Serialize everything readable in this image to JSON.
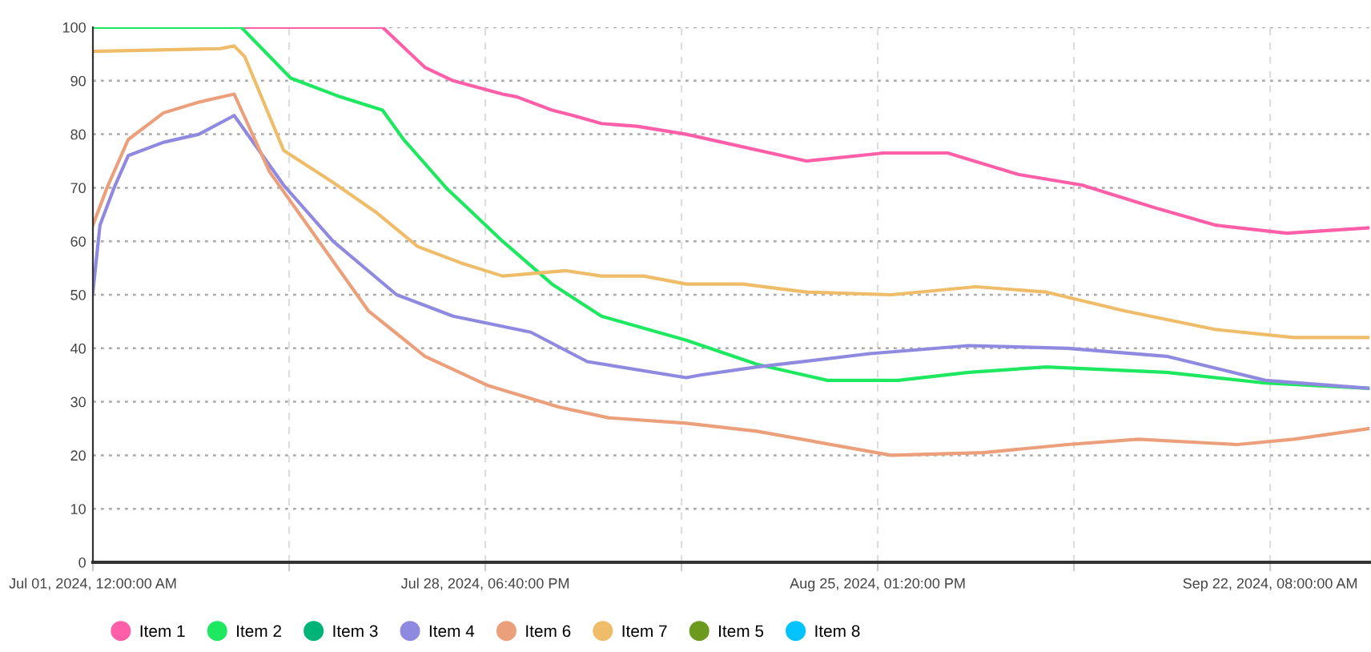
{
  "chart_data": {
    "type": "line",
    "xlim": [
      "2024-07-01T00:00",
      "2024-09-29T09:00"
    ],
    "xticks": [
      {
        "value": "2024-07-01T00:00",
        "label": "Jul 01, 2024, 12:00:00 AM"
      },
      {
        "value": "2024-07-14T21:20",
        "label": null
      },
      {
        "value": "2024-07-28T18:40",
        "label": "Jul 28, 2024, 06:40:00 PM"
      },
      {
        "value": "2024-08-11T16:00",
        "label": null
      },
      {
        "value": "2024-08-25T13:20",
        "label": "Aug 25, 2024, 01:20:00 PM"
      },
      {
        "value": "2024-09-08T10:40",
        "label": null
      },
      {
        "value": "2024-09-22T08:00",
        "label": "Sep 22, 2024, 08:00:00 AM"
      }
    ],
    "ylim": [
      0,
      100
    ],
    "yticks": [
      0,
      10,
      20,
      30,
      40,
      50,
      60,
      70,
      80,
      90,
      100
    ],
    "grid": true,
    "legend": "bottom",
    "marker": "none",
    "line_style": "solid",
    "series": [
      {
        "name": "Item 1",
        "color": "#ff5fa8",
        "x": [
          "2024-07-01",
          "2024-07-21T12:00",
          "2024-07-24T12:00",
          "2024-07-26T12:00",
          "2024-07-30",
          "2024-07-31",
          "2024-08-02T12:00",
          "2024-08-04",
          "2024-08-06",
          "2024-08-08T12:00",
          "2024-08-12",
          "2024-08-20T12:00",
          "2024-08-26",
          "2024-08-30T12:00",
          "2024-09-04T12:00",
          "2024-09-09",
          "2024-09-14T12:00",
          "2024-09-18T12:00",
          "2024-09-23T12:00",
          "2024-09-29T09:00"
        ],
        "values": [
          100,
          100,
          92.5,
          90,
          87.5,
          87,
          84.5,
          83.5,
          82,
          81.5,
          80,
          75,
          76.5,
          76.5,
          72.5,
          70.5,
          66,
          63,
          61.5,
          62.5
        ]
      },
      {
        "name": "Item 2",
        "color": "#1ee860",
        "x": [
          "2024-07-01",
          "2024-07-11T12:00",
          "2024-07-15",
          "2024-07-18T12:00",
          "2024-07-21T12:00",
          "2024-07-23",
          "2024-07-26",
          "2024-07-30",
          "2024-08-02T12:00",
          "2024-08-06",
          "2024-08-12",
          "2024-08-17",
          "2024-08-22",
          "2024-08-27",
          "2024-09-01",
          "2024-09-06T12:00",
          "2024-09-15",
          "2024-09-22",
          "2024-09-29T09:00"
        ],
        "values": [
          100,
          100,
          90.5,
          87,
          84.5,
          79,
          70,
          60,
          52,
          46,
          41.5,
          37,
          34,
          34,
          35.5,
          36.5,
          35.5,
          33.5,
          32.5
        ]
      },
      {
        "name": "Item 3",
        "color": "#00b377"
      },
      {
        "name": "Item 4",
        "color": "#9089e0",
        "x": [
          "2024-07-01",
          "2024-07-01T12:00",
          "2024-07-02T12:00",
          "2024-07-03T12:00",
          "2024-07-06",
          "2024-07-08T12:00",
          "2024-07-11",
          "2024-07-14T12:00",
          "2024-07-18",
          "2024-07-22T12:00",
          "2024-07-26T12:00",
          "2024-08-01",
          "2024-08-05",
          "2024-08-12",
          "2024-08-13",
          "2024-08-17",
          "2024-08-25",
          "2024-09-01",
          "2024-09-08",
          "2024-09-15",
          "2024-09-22",
          "2024-09-29T09:00"
        ],
        "values": [
          50.5,
          63,
          70,
          76,
          78.5,
          80,
          83.5,
          70.5,
          60,
          50,
          46,
          43,
          37.5,
          34.5,
          35,
          36.5,
          39,
          40.5,
          40,
          38.5,
          34,
          32.5
        ]
      },
      {
        "name": "Item 6",
        "color": "#eb9f7a",
        "x": [
          "2024-07-01",
          "2024-07-02",
          "2024-07-03T12:00",
          "2024-07-06",
          "2024-07-08T12:00",
          "2024-07-11",
          "2024-07-13T12:00",
          "2024-07-17",
          "2024-07-20T12:00",
          "2024-07-24T12:00",
          "2024-07-29",
          "2024-08-03",
          "2024-08-06T12:00",
          "2024-08-12",
          "2024-08-17",
          "2024-08-26T12:00",
          "2024-09-02",
          "2024-09-08",
          "2024-09-13",
          "2024-09-20",
          "2024-09-24",
          "2024-09-29T09:00"
        ],
        "values": [
          63,
          70,
          79,
          84,
          86,
          87.5,
          73,
          60,
          47,
          38.5,
          33,
          29,
          27,
          26,
          24.5,
          20,
          20.5,
          22,
          23,
          22,
          23,
          25
        ]
      },
      {
        "name": "Item 7",
        "color": "#efbd6a",
        "x": [
          "2024-07-01",
          "2024-07-10",
          "2024-07-11",
          "2024-07-11T18:00",
          "2024-07-14T12:00",
          "2024-07-18",
          "2024-07-21",
          "2024-07-24",
          "2024-07-27",
          "2024-07-30",
          "2024-08-03T12:00",
          "2024-08-06",
          "2024-08-09",
          "2024-08-12",
          "2024-08-16",
          "2024-08-20T12:00",
          "2024-08-26T12:00",
          "2024-09-01T12:00",
          "2024-09-06T12:00",
          "2024-09-12",
          "2024-09-18T12:00",
          "2024-09-24",
          "2024-09-29T09:00"
        ],
        "values": [
          95.5,
          96,
          96.5,
          94.5,
          77,
          71,
          65.5,
          59,
          56,
          53.5,
          54.5,
          53.5,
          53.5,
          52,
          52,
          50.5,
          50,
          51.5,
          50.5,
          47,
          43.5,
          42,
          42
        ]
      },
      {
        "name": "Item 5",
        "color": "#6b9a1e"
      },
      {
        "name": "Item 8",
        "color": "#00c3ff"
      }
    ]
  }
}
